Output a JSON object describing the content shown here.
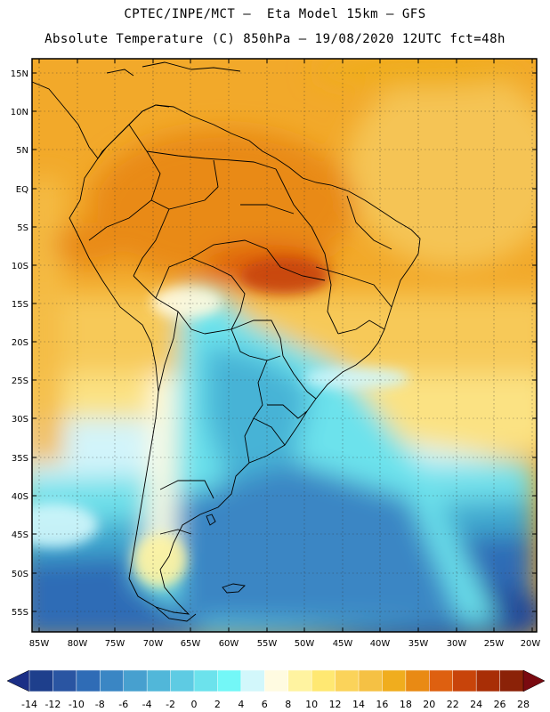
{
  "header": {
    "line1": "CPTEC/INPE/MCT –  Eta Model 15km – GFS",
    "line2": "Absolute Temperature (C) 850hPa – 19/08/2020 12UTC fct=48h"
  },
  "map": {
    "lat_labels": [
      "15N",
      "10N",
      "5N",
      "EQ",
      "5S",
      "10S",
      "15S",
      "20S",
      "25S",
      "30S",
      "35S",
      "40S",
      "45S",
      "50S",
      "55S"
    ],
    "lon_labels": [
      "85W",
      "80W",
      "75W",
      "70W",
      "65W",
      "60W",
      "55W",
      "50W",
      "45W",
      "40W",
      "35W",
      "30W",
      "25W",
      "20W"
    ]
  },
  "colorbar": {
    "labels": [
      "-14",
      "-12",
      "-10",
      "-8",
      "-6",
      "-4",
      "-2",
      "0",
      "2",
      "4",
      "6",
      "8",
      "10",
      "12",
      "14",
      "16",
      "18",
      "20",
      "22",
      "24",
      "26",
      "28"
    ],
    "colors": [
      "#1e3f8c",
      "#2a55a2",
      "#2f6cb6",
      "#3a86c4",
      "#47a0cf",
      "#51b7d9",
      "#5ecbe3",
      "#6ce2ec",
      "#73f7f7",
      "#d2f7fb",
      "#fffbe1",
      "#fff3a0",
      "#ffe872",
      "#fbd35a",
      "#f5c144",
      "#f0ad1e",
      "#e98a14",
      "#de6010",
      "#c8440a",
      "#a82e06",
      "#8b2208"
    ],
    "low_arrow_color": "#1b2f86",
    "high_arrow_color": "#7a0a10"
  }
}
